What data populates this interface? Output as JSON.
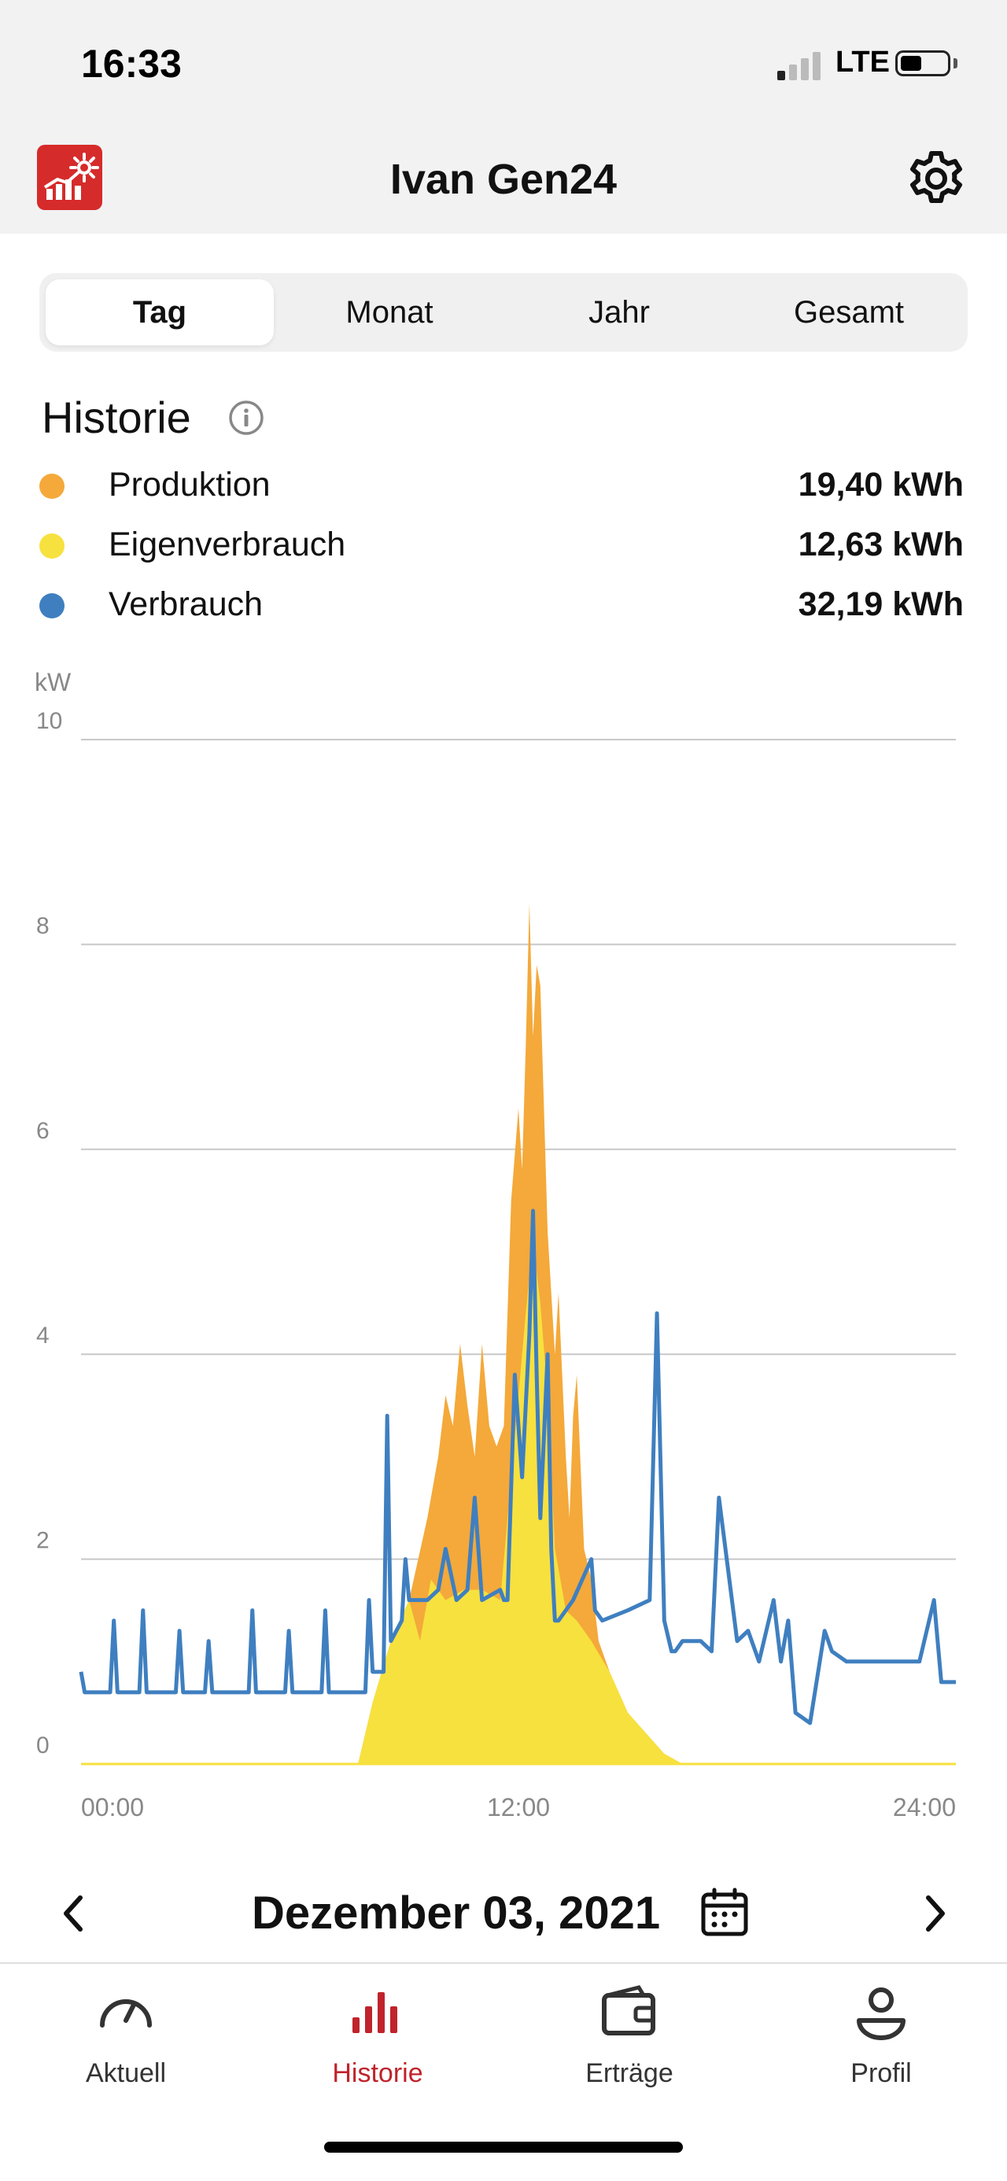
{
  "status": {
    "time": "16:33",
    "network": "LTE"
  },
  "header": {
    "title": "Ivan Gen24"
  },
  "tabs": [
    {
      "label": "Tag",
      "active": true
    },
    {
      "label": "Monat",
      "active": false
    },
    {
      "label": "Jahr",
      "active": false
    },
    {
      "label": "Gesamt",
      "active": false
    }
  ],
  "history": {
    "title": "Historie",
    "legend": [
      {
        "label": "Produktion",
        "value": "19,40 kWh",
        "color": "#f4a93a"
      },
      {
        "label": "Eigenverbrauch",
        "value": "12,63 kWh",
        "color": "#f7e13e"
      },
      {
        "label": "Verbrauch",
        "value": "32,19 kWh",
        "color": "#3f7fc0"
      }
    ]
  },
  "chart_data": {
    "type": "area",
    "ylabel": "kW",
    "ylim": [
      0,
      10
    ],
    "yticks": [
      "0",
      "2",
      "4",
      "6",
      "8",
      "10"
    ],
    "xlim": [
      0,
      24
    ],
    "xticks": [
      "00:00",
      "12:00",
      "24:00"
    ],
    "grid": true,
    "series": [
      {
        "name": "Produktion",
        "type": "area",
        "color": "#f4a93a",
        "x": [
          0,
          7.6,
          8.0,
          8.5,
          9.0,
          9.5,
          9.8,
          10.0,
          10.2,
          10.4,
          10.6,
          10.8,
          11.0,
          11.2,
          11.4,
          11.6,
          11.8,
          12.0,
          12.1,
          12.2,
          12.3,
          12.4,
          12.5,
          12.6,
          12.8,
          13.0,
          13.1,
          13.2,
          13.3,
          13.4,
          13.5,
          13.6,
          13.8,
          14.0,
          14.2,
          14.5,
          15.0,
          15.5,
          16.0,
          16.5,
          24
        ],
        "y": [
          0,
          0,
          0.6,
          1.2,
          1.6,
          2.4,
          3.0,
          3.6,
          3.3,
          4.1,
          3.5,
          3.0,
          4.1,
          3.3,
          3.1,
          3.3,
          5.5,
          6.4,
          5.8,
          7.0,
          8.4,
          7.1,
          7.8,
          7.6,
          5.2,
          4.0,
          4.6,
          3.8,
          3.0,
          2.4,
          3.4,
          3.8,
          2.1,
          1.8,
          1.2,
          0.9,
          0.5,
          0.3,
          0.1,
          0,
          0
        ]
      },
      {
        "name": "Eigenverbrauch",
        "type": "area",
        "color": "#f7e13e",
        "x": [
          0,
          7.6,
          8.0,
          8.5,
          9.0,
          9.3,
          9.6,
          10.0,
          10.5,
          11.0,
          11.5,
          11.8,
          12.0,
          12.2,
          12.4,
          12.6,
          12.8,
          13.0,
          13.3,
          13.6,
          14.0,
          14.5,
          15.0,
          15.5,
          16.0,
          16.5,
          24
        ],
        "y": [
          0,
          0,
          0.6,
          1.2,
          1.6,
          1.2,
          1.8,
          1.6,
          1.7,
          1.7,
          1.6,
          2.8,
          3.6,
          4.4,
          5.1,
          4.5,
          3.6,
          2.1,
          1.5,
          1.4,
          1.2,
          0.9,
          0.5,
          0.3,
          0.1,
          0,
          0
        ]
      },
      {
        "name": "Verbrauch",
        "type": "line",
        "color": "#3f7fc0",
        "x": [
          0,
          0.1,
          0.8,
          0.9,
          1.0,
          1.6,
          1.7,
          1.8,
          2.6,
          2.7,
          2.8,
          3.4,
          3.5,
          3.6,
          4.6,
          4.7,
          4.8,
          5.6,
          5.7,
          5.8,
          6.6,
          6.7,
          6.8,
          7.8,
          7.9,
          8.0,
          8.3,
          8.4,
          8.5,
          8.8,
          8.9,
          9.0,
          9.5,
          9.8,
          10.0,
          10.3,
          10.6,
          10.8,
          11.0,
          11.5,
          11.6,
          11.7,
          11.9,
          12.1,
          12.3,
          12.4,
          12.5,
          12.6,
          12.8,
          12.9,
          13.0,
          13.1,
          13.3,
          13.5,
          14.0,
          14.1,
          14.3,
          15.0,
          15.6,
          15.8,
          16.0,
          16.2,
          16.3,
          16.5,
          17.0,
          17.3,
          17.5,
          18.0,
          18.3,
          18.6,
          19.0,
          19.2,
          19.4,
          19.6,
          20.0,
          20.4,
          20.6,
          21.0,
          21.4,
          21.8,
          22.2,
          22.6,
          23.0,
          23.4,
          23.6,
          24
        ],
        "y": [
          0.9,
          0.7,
          0.7,
          1.4,
          0.7,
          0.7,
          1.5,
          0.7,
          0.7,
          1.3,
          0.7,
          0.7,
          1.2,
          0.7,
          0.7,
          1.5,
          0.7,
          0.7,
          1.3,
          0.7,
          0.7,
          1.5,
          0.7,
          0.7,
          1.6,
          0.9,
          0.9,
          3.4,
          1.2,
          1.4,
          2.0,
          1.6,
          1.6,
          1.7,
          2.1,
          1.6,
          1.7,
          2.6,
          1.6,
          1.7,
          1.6,
          1.6,
          3.8,
          2.8,
          4.2,
          5.4,
          3.8,
          2.4,
          4.0,
          2.1,
          1.4,
          1.4,
          1.5,
          1.6,
          2.0,
          1.5,
          1.4,
          1.5,
          1.6,
          4.4,
          1.4,
          1.1,
          1.1,
          1.2,
          1.2,
          1.1,
          2.6,
          1.2,
          1.3,
          1.0,
          1.6,
          1.0,
          1.4,
          0.5,
          0.4,
          1.3,
          1.1,
          1.0,
          1.0,
          1.0,
          1.0,
          1.0,
          1.0,
          1.6,
          0.8,
          0.8
        ]
      }
    ]
  },
  "date_nav": {
    "label": "Dezember 03, 2021"
  },
  "bottom_nav": [
    {
      "label": "Aktuell",
      "icon": "gauge-icon",
      "active": false
    },
    {
      "label": "Historie",
      "icon": "bar-chart-icon",
      "active": true
    },
    {
      "label": "Erträge",
      "icon": "wallet-icon",
      "active": false
    },
    {
      "label": "Profil",
      "icon": "profile-icon",
      "active": false
    }
  ]
}
